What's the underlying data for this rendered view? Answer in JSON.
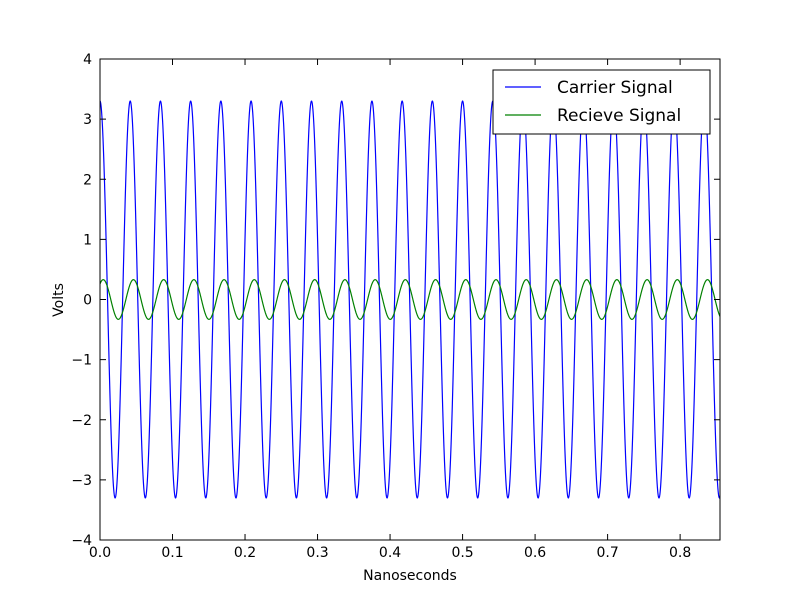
{
  "chart_data": {
    "type": "line",
    "title": "",
    "xlabel": "Nanoseconds",
    "ylabel": "Volts",
    "xlim": [
      0.0,
      0.855
    ],
    "ylim": [
      -4,
      4
    ],
    "x_ticks": [
      0.0,
      0.1,
      0.2,
      0.3,
      0.4,
      0.5,
      0.6,
      0.7,
      0.8
    ],
    "x_tick_labels": [
      "0.0",
      "0.1",
      "0.2",
      "0.3",
      "0.4",
      "0.5",
      "0.6",
      "0.7",
      "0.8"
    ],
    "y_ticks": [
      -4,
      -3,
      -2,
      -1,
      0,
      1,
      2,
      3,
      4
    ],
    "y_tick_labels": [
      "−4",
      "−3",
      "−2",
      "−1",
      "0",
      "1",
      "2",
      "3",
      "4"
    ],
    "grid": false,
    "legend_position": "top-right",
    "series": [
      {
        "name": "Carrier Signal",
        "color": "#0000ff",
        "function": "cosine",
        "amplitude": 3.3,
        "frequency_per_ns": 24.0,
        "phase_rad": 0.0
      },
      {
        "name": "Recieve Signal",
        "color": "#008000",
        "function": "sine",
        "amplitude": 0.33,
        "frequency_per_ns": 24.0,
        "phase_rad": 0.9
      }
    ]
  }
}
